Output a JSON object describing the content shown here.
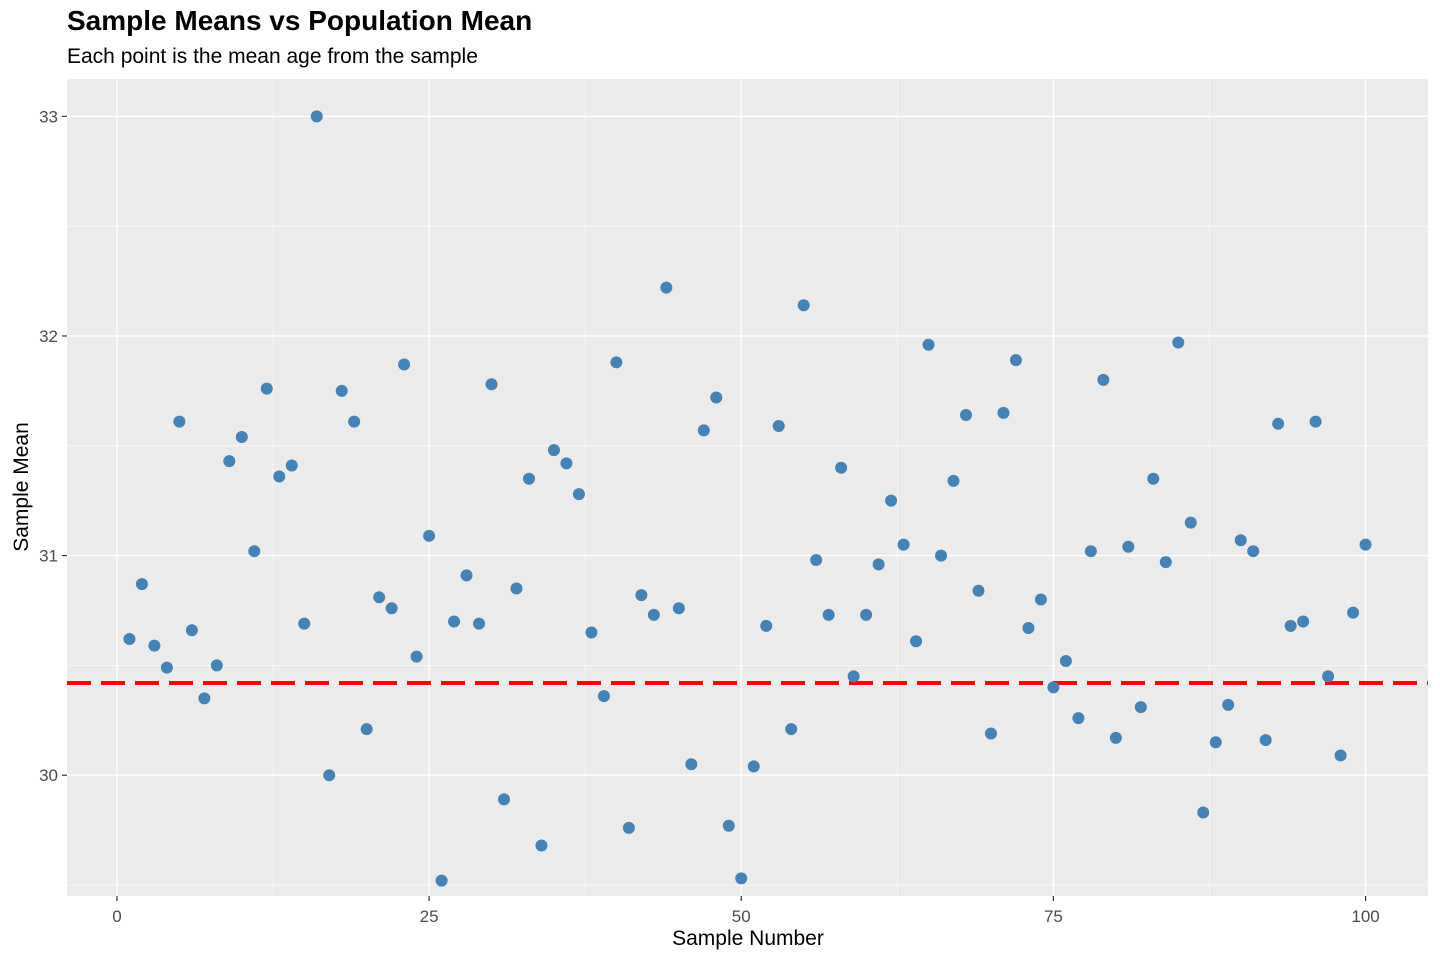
{
  "chart_data": {
    "type": "scatter",
    "title": "Sample Means vs Population Mean",
    "subtitle": "Each point is the mean age from the sample",
    "xlabel": "Sample Number",
    "ylabel": "Sample Mean",
    "xlim": [
      -4,
      105
    ],
    "ylim": [
      29.45,
      33.17
    ],
    "xticks": [
      0,
      25,
      50,
      75,
      100
    ],
    "yticks": [
      30,
      31,
      32,
      33
    ],
    "grid": true,
    "legend": "none",
    "point_color": "#4682B4",
    "panel_background": "#EBEBEB",
    "reference_line": {
      "y": 30.42,
      "style": "dashed",
      "color": "#FF0000"
    },
    "series": [
      {
        "x": [
          1,
          2,
          3,
          4,
          5,
          6,
          7,
          8,
          9,
          10,
          11,
          12,
          13,
          14,
          15,
          16,
          17,
          18,
          19,
          20,
          21,
          22,
          23,
          24,
          25,
          26,
          27,
          28,
          29,
          30,
          31,
          32,
          33,
          34,
          35,
          36,
          37,
          38,
          39,
          40,
          41,
          42,
          43,
          44,
          45,
          46,
          47,
          48,
          49,
          50,
          51,
          52,
          53,
          54,
          55,
          56,
          57,
          58,
          59,
          60,
          61,
          62,
          63,
          64,
          65,
          66,
          67,
          68,
          69,
          70,
          71,
          72,
          73,
          74,
          75,
          76,
          77,
          78,
          79,
          80,
          81,
          82,
          83,
          84,
          85,
          86,
          87,
          88,
          89,
          90,
          91,
          92,
          93,
          94,
          95,
          96,
          97,
          98,
          99,
          100
        ],
        "y": [
          30.62,
          30.87,
          30.59,
          30.49,
          31.61,
          30.66,
          30.35,
          30.5,
          31.43,
          31.54,
          31.02,
          31.76,
          31.36,
          31.41,
          30.69,
          33.0,
          30.0,
          31.75,
          31.61,
          30.21,
          30.81,
          30.76,
          31.87,
          30.54,
          31.09,
          29.52,
          30.7,
          30.91,
          30.69,
          31.78,
          29.89,
          30.85,
          31.35,
          29.68,
          31.48,
          31.42,
          31.28,
          30.65,
          30.36,
          31.88,
          29.76,
          30.82,
          30.73,
          32.22,
          30.76,
          30.05,
          31.57,
          31.72,
          29.77,
          29.53,
          30.04,
          30.68,
          31.59,
          30.21,
          32.14,
          30.98,
          30.73,
          31.4,
          30.45,
          30.73,
          30.96,
          31.25,
          31.05,
          30.61,
          31.96,
          31.0,
          31.34,
          31.64,
          30.84,
          30.19,
          31.65,
          31.89,
          30.67,
          30.8,
          30.4,
          30.52,
          30.26,
          31.02,
          31.8,
          30.17,
          31.04,
          30.31,
          31.35,
          30.97,
          31.97,
          31.15,
          29.83,
          30.15,
          30.32,
          31.07,
          31.02,
          30.16,
          31.6,
          30.68,
          30.7,
          31.61,
          30.45,
          30.09,
          30.74,
          31.05
        ]
      }
    ]
  }
}
